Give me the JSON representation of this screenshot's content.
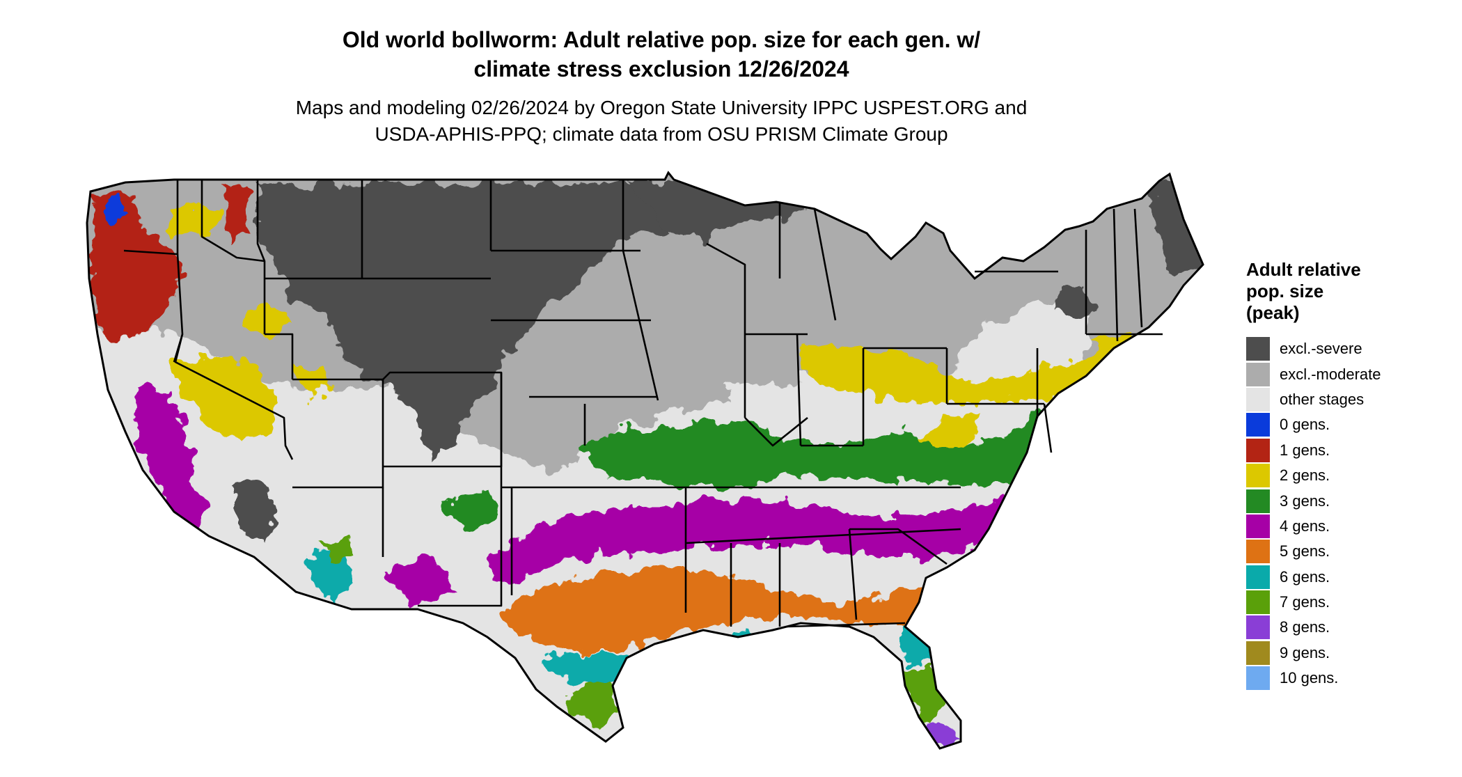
{
  "title_lines": [
    "Old world bollworm: Adult relative pop. size for each gen. w/",
    "climate stress exclusion 12/26/2024"
  ],
  "subtitle_lines": [
    "Maps and modeling 02/26/2024 by Oregon State University IPPC USPEST.ORG and",
    "USDA-APHIS-PPQ; climate data from OSU PRISM Climate Group"
  ],
  "legend": {
    "title_lines": [
      "Adult relative",
      "pop. size",
      "(peak)"
    ],
    "items": [
      {
        "label": "excl.-severe",
        "color": "#4d4d4d"
      },
      {
        "label": "excl.-moderate",
        "color": "#acacac"
      },
      {
        "label": "other stages",
        "color": "#e4e4e4"
      },
      {
        "label": "0 gens.",
        "color": "#0a3bdb"
      },
      {
        "label": "1 gens.",
        "color": "#b32414"
      },
      {
        "label": "2 gens.",
        "color": "#dcc800"
      },
      {
        "label": "3 gens.",
        "color": "#238a23"
      },
      {
        "label": "4 gens.",
        "color": "#a600a6"
      },
      {
        "label": "5 gens.",
        "color": "#de7214"
      },
      {
        "label": "6 gens.",
        "color": "#0aaaaa"
      },
      {
        "label": "7 gens.",
        "color": "#5aa00a"
      },
      {
        "label": "8 gens.",
        "color": "#8a3ed6"
      },
      {
        "label": "9 gens.",
        "color": "#a08a1e"
      },
      {
        "label": "10 gens.",
        "color": "#6eaaf0"
      }
    ]
  }
}
